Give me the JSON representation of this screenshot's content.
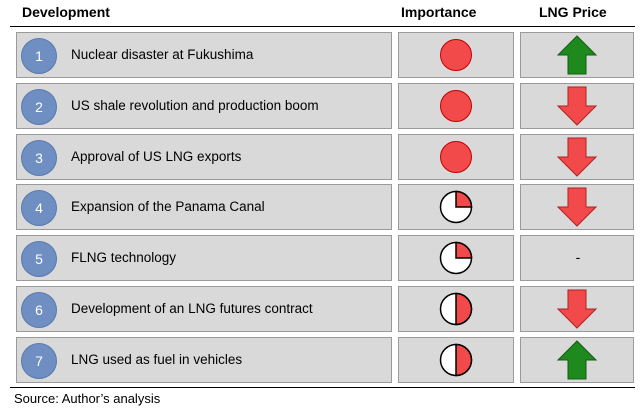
{
  "headers": {
    "development": "Development",
    "importance": "Importance",
    "lng_price": "LNG Price"
  },
  "rows": [
    {
      "number": "1",
      "development": "Nuclear disaster at Fukushima",
      "importance": 1.0,
      "price": "up"
    },
    {
      "number": "2",
      "development": "US shale revolution and production boom",
      "importance": 1.0,
      "price": "down"
    },
    {
      "number": "3",
      "development": "Approval of US LNG exports",
      "importance": 1.0,
      "price": "down"
    },
    {
      "number": "4",
      "development": "Expansion of the Panama Canal",
      "importance": 0.25,
      "price": "down"
    },
    {
      "number": "5",
      "development": "FLNG technology",
      "importance": 0.25,
      "price": "-"
    },
    {
      "number": "6",
      "development": "Development of an LNG futures contract",
      "importance": 0.5,
      "price": "down"
    },
    {
      "number": "7",
      "development": "LNG used as fuel in vehicles",
      "importance": 0.5,
      "price": "up"
    }
  ],
  "source": "Source: Author’s analysis",
  "colors": {
    "importance_fill": "#f24a4a",
    "arrow_up": "#1e8a1e",
    "arrow_down": "#f24a4a",
    "number_circle": "#6f8ec2",
    "cell": "#d9d9d9"
  },
  "icons": {
    "importance": "harvey-ball-icon",
    "up": "arrow-up-icon",
    "down": "arrow-down-icon"
  }
}
